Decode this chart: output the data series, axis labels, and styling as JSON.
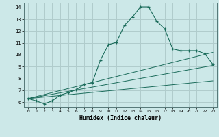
{
  "xlabel": "Humidex (Indice chaleur)",
  "bg_color": "#cce8e8",
  "grid_color": "#b0cccc",
  "line_color": "#1a6b5a",
  "xlim": [
    -0.5,
    23.5
  ],
  "ylim": [
    5.6,
    14.4
  ],
  "xticks": [
    0,
    1,
    2,
    3,
    4,
    5,
    6,
    7,
    8,
    9,
    10,
    11,
    12,
    13,
    14,
    15,
    16,
    17,
    18,
    19,
    20,
    21,
    22,
    23
  ],
  "yticks": [
    6,
    7,
    8,
    9,
    10,
    11,
    12,
    13,
    14
  ],
  "curve1_x": [
    0,
    1,
    2,
    3,
    4,
    5,
    6,
    7,
    8,
    9,
    10,
    11,
    12,
    13,
    14,
    15,
    16,
    17,
    18,
    19,
    20,
    21,
    22,
    23
  ],
  "curve1_y": [
    6.3,
    6.1,
    5.85,
    6.1,
    6.6,
    6.8,
    7.05,
    7.5,
    7.65,
    9.55,
    10.85,
    11.05,
    12.5,
    13.2,
    14.05,
    14.05,
    12.85,
    12.2,
    10.5,
    10.35,
    10.35,
    10.35,
    10.1,
    9.2
  ],
  "curve2_x": [
    0,
    23
  ],
  "curve2_y": [
    6.3,
    10.2
  ],
  "curve3_x": [
    0,
    23
  ],
  "curve3_y": [
    6.3,
    9.1
  ],
  "curve4_x": [
    0,
    23
  ],
  "curve4_y": [
    6.3,
    7.8
  ]
}
